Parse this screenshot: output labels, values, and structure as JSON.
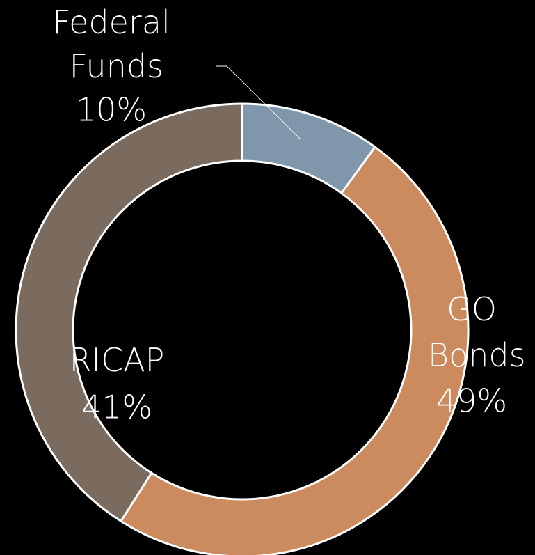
{
  "chart_data": {
    "type": "donut",
    "categories": [
      "Federal Funds",
      "GO Bonds",
      "RICAP"
    ],
    "values": [
      10,
      49,
      41
    ],
    "value_labels": [
      "10%",
      "49%",
      "41%"
    ],
    "colors": [
      "#7f96ab",
      "#cc8a5f",
      "#7b6a5e"
    ]
  }
}
